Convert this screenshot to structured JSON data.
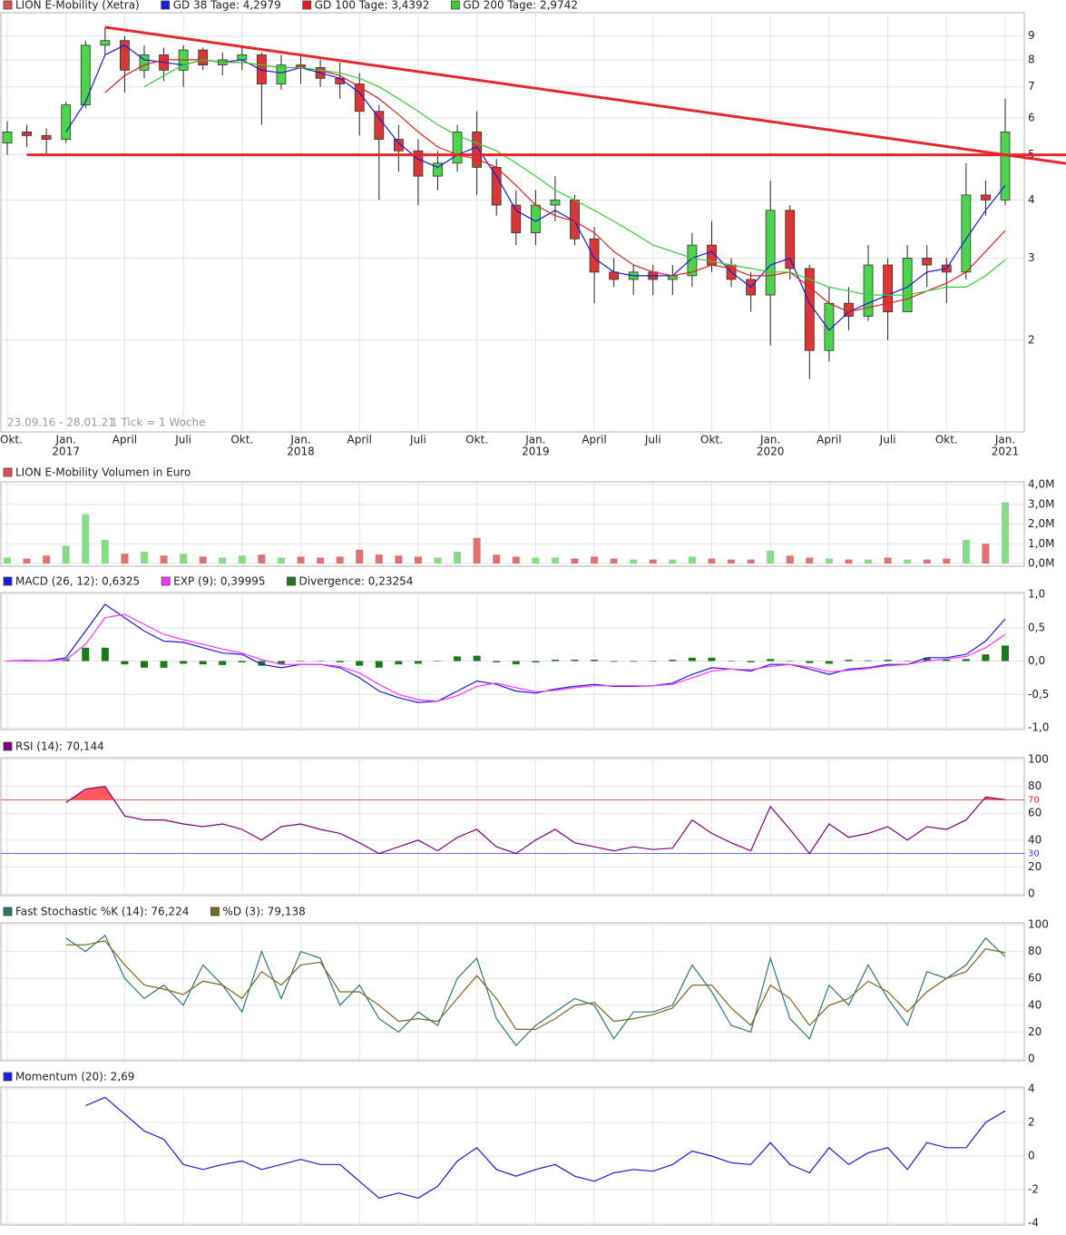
{
  "chart_data": [
    {
      "type": "candlestick",
      "name": "LION E-Mobility (Xetra)",
      "color": "#e05050",
      "date_range": "23.09.16 - 28.01.21",
      "tick_note": "1 Tick = 1 Woche",
      "x": [
        "2016-10",
        "2016-11",
        "2016-12",
        "2017-01",
        "2017-02",
        "2017-03",
        "2017-04",
        "2017-05",
        "2017-06",
        "2017-07",
        "2017-08",
        "2017-09",
        "2017-10",
        "2017-11",
        "2017-12",
        "2018-01",
        "2018-02",
        "2018-03",
        "2018-04",
        "2018-05",
        "2018-06",
        "2018-07",
        "2018-08",
        "2018-09",
        "2018-10",
        "2018-11",
        "2018-12",
        "2019-01",
        "2019-02",
        "2019-03",
        "2019-04",
        "2019-05",
        "2019-06",
        "2019-07",
        "2019-08",
        "2019-09",
        "2019-10",
        "2019-11",
        "2019-12",
        "2020-01",
        "2020-02",
        "2020-03",
        "2020-04",
        "2020-05",
        "2020-06",
        "2020-07",
        "2020-08",
        "2020-09",
        "2020-10",
        "2020-11",
        "2020-12",
        "2021-01"
      ],
      "open": [
        5.3,
        5.6,
        5.5,
        5.4,
        6.4,
        8.6,
        8.8,
        7.6,
        8.2,
        7.6,
        8.4,
        7.8,
        8.0,
        8.2,
        7.1,
        7.8,
        7.7,
        7.3,
        7.1,
        6.2,
        5.4,
        5.1,
        4.5,
        4.8,
        5.6,
        4.7,
        3.9,
        3.4,
        3.9,
        4.0,
        3.3,
        2.8,
        2.7,
        2.8,
        2.7,
        2.75,
        3.2,
        2.9,
        2.7,
        2.5,
        3.8,
        2.85,
        1.9,
        2.4,
        2.25,
        2.9,
        2.3,
        3.0,
        2.9,
        2.8,
        4.1,
        4.0
      ],
      "high": [
        5.9,
        5.8,
        5.7,
        6.5,
        8.8,
        9.4,
        9.0,
        8.6,
        8.5,
        8.6,
        8.5,
        8.3,
        8.6,
        8.3,
        8.2,
        8.2,
        8.0,
        7.9,
        7.5,
        6.4,
        5.8,
        5.4,
        5.1,
        5.8,
        6.2,
        4.9,
        4.2,
        4.2,
        4.5,
        4.1,
        3.5,
        3.0,
        2.9,
        2.9,
        2.9,
        3.4,
        3.6,
        3.0,
        2.8,
        4.4,
        3.9,
        2.9,
        2.6,
        2.6,
        3.2,
        3.0,
        3.2,
        3.2,
        3.0,
        4.8,
        4.4,
        6.6
      ],
      "low": [
        5.0,
        5.2,
        5.0,
        5.3,
        6.3,
        8.2,
        6.8,
        7.3,
        7.2,
        7.0,
        7.6,
        7.4,
        7.6,
        5.8,
        6.9,
        7.1,
        7.0,
        6.6,
        5.5,
        4.0,
        4.6,
        3.9,
        4.2,
        4.6,
        4.1,
        3.7,
        3.2,
        3.2,
        3.6,
        3.2,
        2.4,
        2.6,
        2.5,
        2.5,
        2.5,
        2.6,
        2.8,
        2.6,
        2.3,
        1.95,
        2.7,
        1.65,
        1.8,
        2.1,
        2.2,
        2.0,
        2.3,
        2.6,
        2.4,
        2.7,
        3.7,
        3.9
      ],
      "close": [
        5.6,
        5.5,
        5.4,
        6.4,
        8.6,
        8.8,
        7.6,
        8.2,
        7.6,
        8.4,
        7.8,
        8.0,
        8.2,
        7.1,
        7.8,
        7.7,
        7.3,
        7.1,
        6.2,
        5.4,
        5.1,
        4.5,
        4.8,
        5.6,
        4.7,
        3.9,
        3.4,
        3.9,
        4.0,
        3.3,
        2.8,
        2.7,
        2.8,
        2.7,
        2.75,
        3.2,
        2.9,
        2.7,
        2.5,
        3.8,
        2.85,
        1.9,
        2.4,
        2.25,
        2.9,
        2.3,
        3.0,
        2.9,
        2.8,
        4.1,
        4.0,
        5.6
      ],
      "up_color": "#4cd44c",
      "down_color": "#d93636",
      "series": [
        {
          "name": "GD 38 Tage: 4,2979",
          "color": "#1a1adb",
          "values": [
            null,
            null,
            null,
            5.6,
            6.5,
            8.2,
            8.6,
            8.0,
            7.9,
            7.8,
            8.0,
            7.9,
            8.0,
            7.6,
            7.5,
            7.7,
            7.5,
            7.3,
            6.8,
            6.0,
            5.3,
            4.9,
            4.7,
            5.0,
            5.2,
            4.5,
            3.8,
            3.6,
            3.8,
            3.6,
            3.0,
            2.8,
            2.75,
            2.75,
            2.75,
            3.0,
            3.1,
            2.8,
            2.6,
            2.9,
            3.0,
            2.4,
            2.1,
            2.3,
            2.4,
            2.5,
            2.6,
            2.8,
            2.85,
            3.3,
            3.8,
            4.2979
          ]
        },
        {
          "name": "GD 100 Tage: 3,4392",
          "color": "#e02020",
          "values": [
            null,
            null,
            null,
            null,
            null,
            6.8,
            7.4,
            7.8,
            8.0,
            8.0,
            8.0,
            7.9,
            7.9,
            7.8,
            7.7,
            7.7,
            7.6,
            7.4,
            7.0,
            6.6,
            6.1,
            5.6,
            5.2,
            5.0,
            4.9,
            4.7,
            4.3,
            3.9,
            3.7,
            3.6,
            3.4,
            3.1,
            2.9,
            2.8,
            2.75,
            2.8,
            2.9,
            2.85,
            2.75,
            2.75,
            2.8,
            2.6,
            2.4,
            2.3,
            2.35,
            2.4,
            2.45,
            2.55,
            2.65,
            2.8,
            3.1,
            3.4392
          ]
        },
        {
          "name": "GD 200 Tage: 2,9742",
          "color": "#33d033",
          "values": [
            null,
            null,
            null,
            null,
            null,
            null,
            null,
            7.0,
            7.4,
            7.8,
            8.0,
            7.9,
            7.9,
            7.8,
            7.7,
            7.7,
            7.6,
            7.5,
            7.3,
            7.0,
            6.6,
            6.2,
            5.8,
            5.5,
            5.3,
            5.1,
            4.8,
            4.5,
            4.2,
            4.0,
            3.8,
            3.6,
            3.4,
            3.2,
            3.1,
            3.0,
            2.95,
            2.9,
            2.85,
            2.8,
            2.8,
            2.7,
            2.6,
            2.55,
            2.5,
            2.5,
            2.5,
            2.55,
            2.6,
            2.6,
            2.75,
            2.9742
          ]
        }
      ],
      "trendlines": [
        {
          "color": "#e8262b",
          "x": [
            "2017-03",
            "2021-01"
          ],
          "values": [
            9.4,
            5.0
          ]
        },
        {
          "color": "#e8262b",
          "x": [
            "2016-11",
            "2021-01"
          ],
          "values": [
            5.0,
            5.0
          ]
        }
      ],
      "ylim": [
        1.27,
        10.1
      ],
      "log_scale": true,
      "yticks": [
        2,
        3,
        4,
        5,
        6,
        7,
        8,
        9
      ],
      "grid": true,
      "xticks": [
        {
          "value": "2016-10",
          "label": "Okt."
        },
        {
          "value": "2017-01",
          "label": "Jan."
        },
        {
          "value": "2017-04",
          "label": "April"
        },
        {
          "value": "2017-07",
          "label": "Juli"
        },
        {
          "value": "2017-10",
          "label": "Okt."
        },
        {
          "value": "2018-01",
          "label": "Jan."
        },
        {
          "value": "2018-04",
          "label": "April"
        },
        {
          "value": "2018-07",
          "label": "Juli"
        },
        {
          "value": "2018-10",
          "label": "Okt."
        },
        {
          "value": "2019-01",
          "label": "Jan."
        },
        {
          "value": "2019-04",
          "label": "April"
        },
        {
          "value": "2019-07",
          "label": "Juli"
        },
        {
          "value": "2019-10",
          "label": "Okt."
        },
        {
          "value": "2020-01",
          "label": "Jan."
        },
        {
          "value": "2020-04",
          "label": "April"
        },
        {
          "value": "2020-07",
          "label": "Juli"
        },
        {
          "value": "2020-10",
          "label": "Okt."
        },
        {
          "value": "2021-01",
          "label": "Jan."
        }
      ],
      "year_ticks": [
        {
          "value": "2017-01",
          "label": "2017"
        },
        {
          "value": "2018-01",
          "label": "2018"
        },
        {
          "value": "2019-01",
          "label": "2019"
        },
        {
          "value": "2020-01",
          "label": "2020"
        },
        {
          "value": "2021-01",
          "label": "2021"
        }
      ]
    },
    {
      "type": "bar",
      "name": "LION E-Mobility Volumen in Euro",
      "color": "#e05050",
      "up_color": "#86dc86",
      "down_color": "#e27070",
      "values": [
        300000,
        250000,
        400000,
        900000,
        2500000,
        1200000,
        500000,
        600000,
        400000,
        500000,
        350000,
        300000,
        400000,
        450000,
        300000,
        350000,
        300000,
        350000,
        700000,
        450000,
        400000,
        350000,
        300000,
        600000,
        1300000,
        450000,
        350000,
        300000,
        300000,
        250000,
        350000,
        250000,
        200000,
        200000,
        200000,
        350000,
        250000,
        200000,
        200000,
        650000,
        400000,
        300000,
        250000,
        200000,
        200000,
        300000,
        200000,
        200000,
        250000,
        1200000,
        1000000,
        3100000
      ],
      "ylim": [
        0,
        4000000
      ],
      "grid": true,
      "yticks": [
        {
          "value": 0,
          "label": "0,0M"
        },
        {
          "value": 1000000,
          "label": "1,0M"
        },
        {
          "value": 2000000,
          "label": "2,0M"
        },
        {
          "value": 3000000,
          "label": "3,0M"
        },
        {
          "value": 4000000,
          "label": "4,0M"
        }
      ]
    },
    {
      "type": "line",
      "series": [
        {
          "name": "MACD (26, 12): 0,6325",
          "color": "#1a1ae0",
          "values": [
            0,
            0.01,
            0.0,
            0.05,
            0.45,
            0.85,
            0.65,
            0.45,
            0.3,
            0.28,
            0.2,
            0.12,
            0.1,
            -0.05,
            -0.1,
            -0.05,
            -0.05,
            -0.1,
            -0.25,
            -0.45,
            -0.55,
            -0.62,
            -0.6,
            -0.45,
            -0.3,
            -0.35,
            -0.45,
            -0.48,
            -0.42,
            -0.38,
            -0.35,
            -0.38,
            -0.38,
            -0.37,
            -0.33,
            -0.2,
            -0.1,
            -0.12,
            -0.15,
            -0.05,
            -0.05,
            -0.12,
            -0.2,
            -0.12,
            -0.1,
            -0.05,
            -0.05,
            0.05,
            0.05,
            0.1,
            0.3,
            0.6325
          ]
        },
        {
          "name": "EXP (9): 0,39995",
          "color": "#ff33ff",
          "values": [
            0,
            0,
            0,
            0.02,
            0.25,
            0.65,
            0.7,
            0.55,
            0.4,
            0.32,
            0.25,
            0.18,
            0.12,
            0.02,
            -0.05,
            -0.05,
            -0.05,
            -0.08,
            -0.18,
            -0.35,
            -0.5,
            -0.58,
            -0.6,
            -0.52,
            -0.38,
            -0.33,
            -0.4,
            -0.46,
            -0.44,
            -0.4,
            -0.37,
            -0.37,
            -0.37,
            -0.37,
            -0.35,
            -0.25,
            -0.15,
            -0.12,
            -0.13,
            -0.08,
            -0.05,
            -0.09,
            -0.16,
            -0.14,
            -0.11,
            -0.07,
            -0.05,
            0.0,
            0.03,
            0.07,
            0.2,
            0.39995
          ]
        },
        {
          "name": "Divergence: 0,23254",
          "color": "#1a7a1a",
          "style": "bar",
          "values": [
            0,
            0.01,
            0,
            0.03,
            0.2,
            0.2,
            -0.05,
            -0.1,
            -0.1,
            -0.04,
            -0.05,
            -0.06,
            -0.02,
            -0.07,
            -0.05,
            0,
            0,
            -0.02,
            -0.07,
            -0.1,
            -0.05,
            -0.04,
            0,
            0.07,
            0.08,
            -0.02,
            -0.05,
            -0.02,
            0.02,
            0.02,
            0.02,
            -0.01,
            -0.01,
            0,
            0.02,
            0.05,
            0.05,
            0,
            -0.02,
            0.03,
            0,
            -0.03,
            -0.04,
            0.02,
            0.01,
            0.02,
            0,
            0.05,
            0.02,
            0.03,
            0.1,
            0.23254
          ]
        }
      ],
      "ylim": [
        -1,
        1
      ],
      "grid": true,
      "yticks": [
        {
          "value": -1,
          "label": "-1,0"
        },
        {
          "value": -0.5,
          "label": "-0,5"
        },
        {
          "value": 0,
          "label": "0,0"
        },
        {
          "value": 0.5,
          "label": "0,5"
        },
        {
          "value": 1,
          "label": "1,0"
        }
      ]
    },
    {
      "type": "line",
      "series": [
        {
          "name": "RSI (14): 70,144",
          "color": "#800080",
          "values": [
            null,
            null,
            null,
            68,
            78,
            80,
            58,
            55,
            55,
            52,
            50,
            52,
            48,
            40,
            50,
            52,
            48,
            45,
            38,
            30,
            35,
            40,
            32,
            42,
            48,
            35,
            30,
            40,
            48,
            38,
            35,
            32,
            35,
            33,
            34,
            55,
            45,
            38,
            32,
            65,
            48,
            30,
            52,
            42,
            45,
            50,
            40,
            50,
            48,
            55,
            72,
            70.144
          ]
        }
      ],
      "ref_lines": [
        {
          "value": 70,
          "color": "#e8262b",
          "fill": "#ff5a5a",
          "side": "above"
        },
        {
          "value": 30,
          "color": "#3a3ae8",
          "fill": "#6a5aff",
          "side": "below"
        }
      ],
      "ylim": [
        0,
        100
      ],
      "yticks": [
        0,
        20,
        40,
        60,
        80,
        100
      ],
      "grid": true
    },
    {
      "type": "line",
      "series": [
        {
          "name": "Fast Stochastic %K (14): 76,224",
          "color": "#2a7a74",
          "values": [
            null,
            null,
            null,
            90,
            80,
            92,
            60,
            45,
            55,
            40,
            70,
            55,
            35,
            80,
            45,
            80,
            75,
            40,
            55,
            30,
            20,
            35,
            25,
            60,
            75,
            30,
            10,
            25,
            35,
            45,
            40,
            15,
            35,
            35,
            40,
            70,
            50,
            25,
            20,
            75,
            30,
            15,
            55,
            40,
            70,
            45,
            25,
            65,
            60,
            70,
            90,
            76.224
          ]
        },
        {
          "name": "%D (3): 79,138",
          "color": "#7a6a1a",
          "values": [
            null,
            null,
            null,
            85,
            85,
            88,
            70,
            55,
            52,
            48,
            58,
            55,
            45,
            65,
            55,
            70,
            72,
            50,
            50,
            40,
            28,
            30,
            28,
            45,
            62,
            45,
            22,
            22,
            30,
            40,
            42,
            28,
            30,
            33,
            38,
            55,
            55,
            38,
            25,
            55,
            45,
            25,
            40,
            45,
            58,
            50,
            35,
            50,
            60,
            65,
            82,
            79.138
          ]
        }
      ],
      "ylim": [
        0,
        100
      ],
      "yticks": [
        0,
        20,
        40,
        60,
        80,
        100
      ],
      "grid": true
    },
    {
      "type": "line",
      "series": [
        {
          "name": "Momentum (20): 2,69",
          "color": "#1a1ae0",
          "values": [
            null,
            null,
            null,
            null,
            3.0,
            3.5,
            2.5,
            1.5,
            1.0,
            -0.5,
            -0.8,
            -0.5,
            -0.3,
            -0.8,
            -0.5,
            -0.2,
            -0.5,
            -0.5,
            -1.5,
            -2.5,
            -2.2,
            -2.5,
            -1.8,
            -0.3,
            0.5,
            -0.8,
            -1.2,
            -0.8,
            -0.5,
            -1.2,
            -1.5,
            -1.0,
            -0.8,
            -0.9,
            -0.5,
            0.3,
            0.0,
            -0.4,
            -0.5,
            0.8,
            -0.5,
            -1.0,
            0.5,
            -0.5,
            0.2,
            0.5,
            -0.8,
            0.8,
            0.5,
            0.5,
            2.0,
            2.69
          ]
        }
      ],
      "ylim": [
        -4,
        4
      ],
      "yticks": [
        -4,
        -2,
        0,
        2,
        4
      ],
      "grid": true
    }
  ]
}
